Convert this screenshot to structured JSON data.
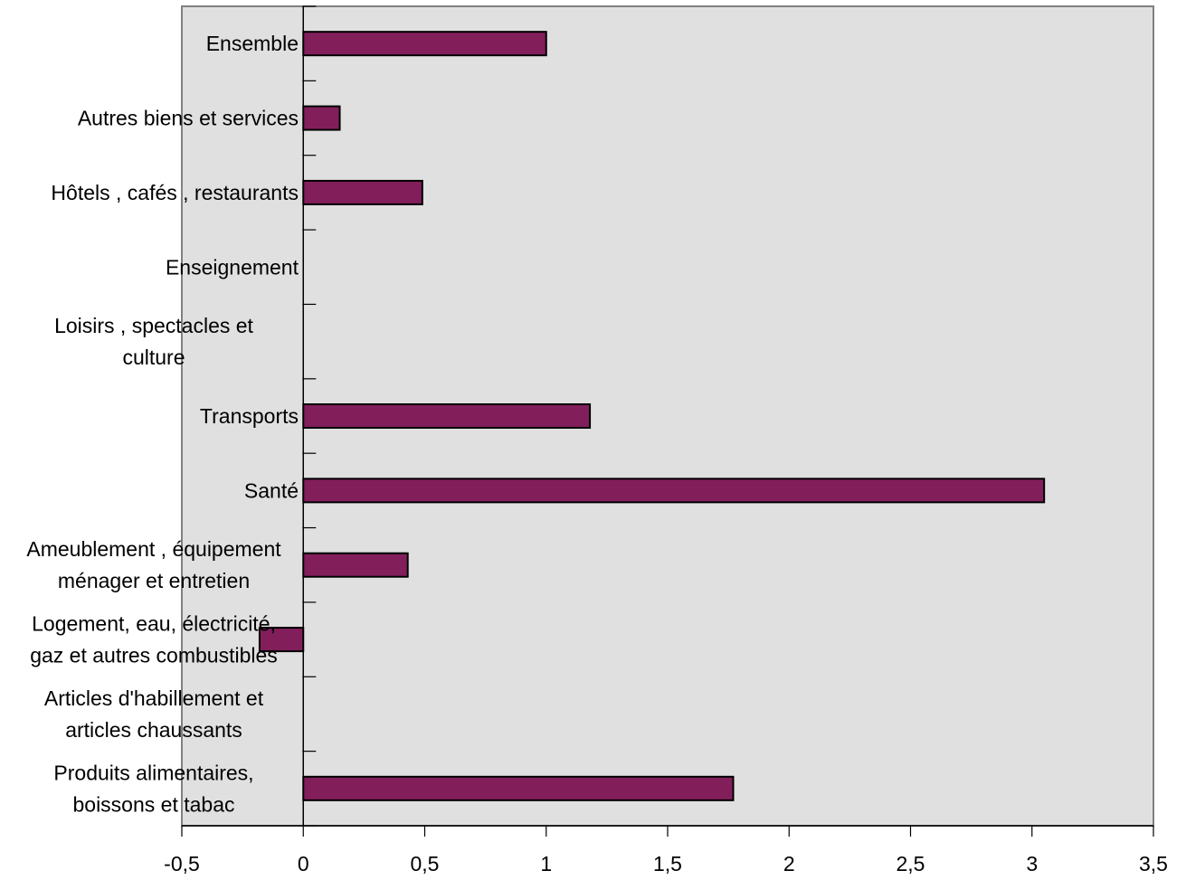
{
  "chart_data": {
    "type": "bar",
    "orientation": "horizontal",
    "categories": [
      "Produits alimentaires, boissons et tabac",
      "Articles d'habillement et articles chaussants",
      "Logement, eau, électricité, gaz et autres combustibles",
      "Ameublement , équipement ménager et entretien",
      "Santé",
      "Transports",
      "Loisirs , spectacles et culture",
      "Enseignement",
      "Hôtels , cafés , restaurants",
      "Autres biens et services",
      "Ensemble"
    ],
    "category_lines": [
      [
        "Produits alimentaires,",
        "boissons et tabac"
      ],
      [
        "Articles d'habillement et",
        "articles chaussants"
      ],
      [
        "Logement, eau, électricité,",
        "gaz et autres combustibles"
      ],
      [
        "Ameublement , équipement",
        "ménager et entretien"
      ],
      [
        "Santé"
      ],
      [
        "Transports"
      ],
      [
        "Loisirs , spectacles et",
        "culture"
      ],
      [
        "Enseignement"
      ],
      [
        "Hôtels , cafés , restaurants"
      ],
      [
        "Autres biens et services"
      ],
      [
        "Ensemble"
      ]
    ],
    "values": [
      1.77,
      0,
      -0.18,
      0.43,
      3.05,
      1.18,
      0,
      0,
      0.49,
      0.15,
      1.0
    ],
    "xlim": [
      -0.5,
      3.5
    ],
    "xticks": [
      -0.5,
      0,
      0.5,
      1,
      1.5,
      2,
      2.5,
      3,
      3.5
    ],
    "xtick_labels": [
      "-0,5",
      "0",
      "0,5",
      "1",
      "1,5",
      "2",
      "2,5",
      "3",
      "3,5"
    ],
    "title": "",
    "xlabel": "",
    "ylabel": "",
    "grid": false,
    "legend": "none",
    "colors": {
      "bar_fill": "#821f5b",
      "bar_stroke": "#000000",
      "plot_background": "#e0e0e0",
      "axis": "#000000",
      "plot_border": "#808080"
    }
  }
}
